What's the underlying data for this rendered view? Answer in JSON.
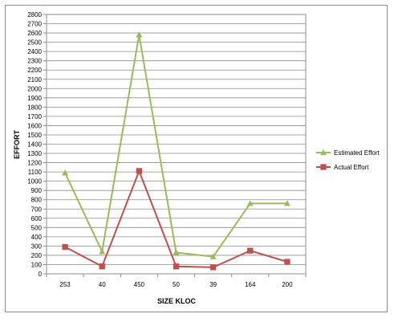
{
  "chart_data": {
    "type": "line",
    "title": "",
    "xlabel": "SIZE KLOC",
    "ylabel": "EFFORT",
    "categories": [
      "253",
      "40",
      "450",
      "50",
      "39",
      "164",
      "200"
    ],
    "ylim": [
      0,
      2800
    ],
    "ytick_step": 100,
    "grid": true,
    "legend_position": "right",
    "series": [
      {
        "name": "Estimated Effort",
        "color": "#9bbb59",
        "marker": "triangle",
        "values": [
          1090,
          240,
          2580,
          230,
          185,
          760,
          760
        ]
      },
      {
        "name": "Actual Effort",
        "color": "#c0504d",
        "marker": "square",
        "values": [
          290,
          80,
          1110,
          80,
          70,
          250,
          130
        ]
      }
    ]
  }
}
